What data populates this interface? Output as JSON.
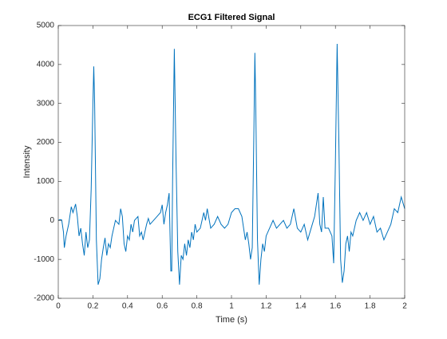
{
  "chart_data": {
    "type": "line",
    "title": "ECG1 Filtered Signal",
    "xlabel": "Time (s)",
    "ylabel": "Intensity",
    "color": "#0072bd",
    "x": [
      0,
      0.01,
      0.02,
      0.03,
      0.035,
      0.045,
      0.06,
      0.075,
      0.085,
      0.1,
      0.11,
      0.12,
      0.13,
      0.14,
      0.15,
      0.16,
      0.17,
      0.18,
      0.19,
      0.2,
      0.205,
      0.21,
      0.22,
      0.23,
      0.24,
      0.25,
      0.26,
      0.27,
      0.28,
      0.29,
      0.3,
      0.31,
      0.32,
      0.33,
      0.35,
      0.36,
      0.37,
      0.38,
      0.39,
      0.4,
      0.41,
      0.42,
      0.43,
      0.44,
      0.46,
      0.47,
      0.48,
      0.49,
      0.5,
      0.51,
      0.52,
      0.53,
      0.55,
      0.57,
      0.59,
      0.6,
      0.61,
      0.62,
      0.63,
      0.64,
      0.65,
      0.655,
      0.66,
      0.67,
      0.68,
      0.69,
      0.7,
      0.71,
      0.72,
      0.73,
      0.74,
      0.75,
      0.76,
      0.77,
      0.78,
      0.79,
      0.8,
      0.82,
      0.84,
      0.85,
      0.86,
      0.88,
      0.9,
      0.92,
      0.94,
      0.96,
      0.98,
      1.0,
      1.02,
      1.04,
      1.06,
      1.07,
      1.08,
      1.09,
      1.1,
      1.11,
      1.12,
      1.13,
      1.135,
      1.14,
      1.15,
      1.16,
      1.17,
      1.18,
      1.19,
      1.2,
      1.22,
      1.24,
      1.26,
      1.28,
      1.3,
      1.32,
      1.34,
      1.36,
      1.38,
      1.4,
      1.42,
      1.44,
      1.46,
      1.48,
      1.5,
      1.51,
      1.52,
      1.53,
      1.54,
      1.56,
      1.58,
      1.59,
      1.6,
      1.61,
      1.62,
      1.63,
      1.64,
      1.65,
      1.66,
      1.67,
      1.68,
      1.69,
      1.7,
      1.72,
      1.74,
      1.76,
      1.78,
      1.8,
      1.82,
      1.84,
      1.86,
      1.88,
      1.9,
      1.92,
      1.94,
      1.96,
      1.98,
      2.0
    ],
    "values": [
      0,
      20,
      10,
      -300,
      -700,
      -400,
      -100,
      350,
      200,
      420,
      100,
      -400,
      -200,
      -600,
      -900,
      -300,
      -700,
      -500,
      800,
      3000,
      3950,
      3000,
      -500,
      -1650,
      -1500,
      -1000,
      -700,
      -450,
      -900,
      -600,
      -700,
      -400,
      -200,
      0,
      -100,
      300,
      100,
      -600,
      -800,
      -400,
      -500,
      -100,
      -300,
      0,
      100,
      -400,
      -300,
      -500,
      -300,
      -100,
      50,
      -100,
      0,
      100,
      200,
      400,
      -100,
      200,
      400,
      700,
      -1300,
      -1300,
      1000,
      4400,
      1500,
      -800,
      -1650,
      -900,
      -1000,
      -600,
      -900,
      -500,
      -700,
      -300,
      -500,
      -100,
      -300,
      -200,
      200,
      0,
      300,
      -200,
      -100,
      100,
      -100,
      -200,
      -100,
      200,
      300,
      300,
      100,
      -200,
      -500,
      -300,
      -600,
      -1000,
      -700,
      2500,
      4300,
      3000,
      -500,
      -1650,
      -1000,
      -600,
      -800,
      -400,
      -200,
      0,
      -200,
      -100,
      0,
      -200,
      -100,
      300,
      -200,
      -300,
      -100,
      -500,
      -200,
      100,
      700,
      -100,
      -300,
      600,
      -200,
      -200,
      -400,
      -1100,
      1500,
      4530,
      2000,
      -1000,
      -1600,
      -1300,
      -600,
      -400,
      -800,
      -300,
      -400,
      0,
      200,
      0,
      200,
      -100,
      100,
      -300,
      -200,
      -500,
      -300,
      -100,
      300,
      200,
      600,
      300
    ],
    "xlim": [
      0,
      2
    ],
    "xticks": [
      0,
      0.2,
      0.4,
      0.6,
      0.8,
      1,
      1.2,
      1.4,
      1.6,
      1.8,
      2
    ],
    "ylim": [
      -2000,
      5000
    ],
    "yticks": [
      -2000,
      -1000,
      0,
      1000,
      2000,
      3000,
      4000,
      5000
    ]
  }
}
